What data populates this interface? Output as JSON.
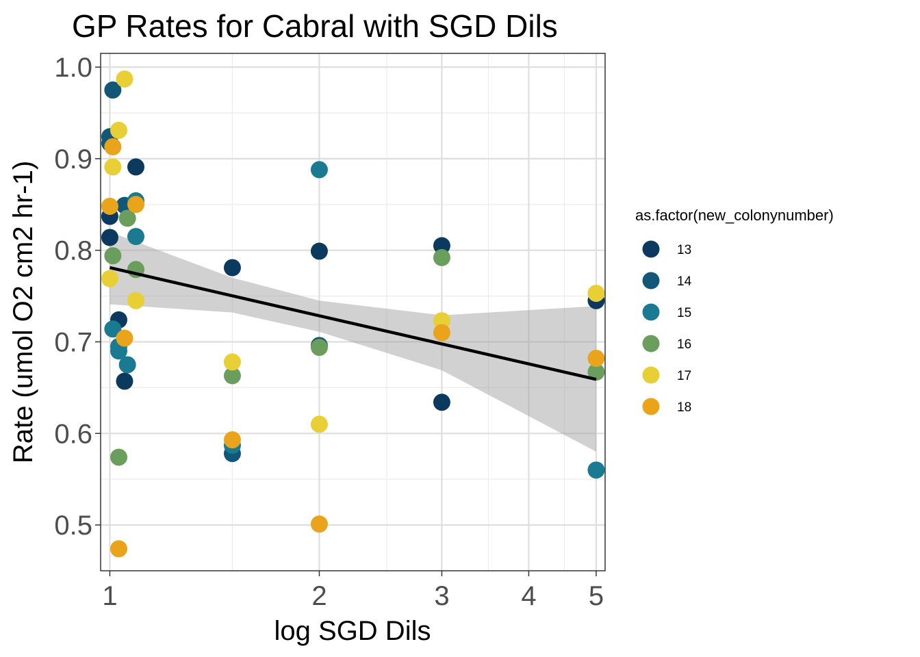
{
  "chart_data": {
    "type": "scatter",
    "title": "GP Rates for Cabral with SGD Dils",
    "xlabel": "log SGD Dils",
    "ylabel": "Rate (umol O2 cm2 hr-1)",
    "x_scale": "log",
    "xlim": [
      0.97,
      5.15
    ],
    "ylim": [
      0.45,
      1.015
    ],
    "x_ticks": [
      1,
      2,
      3,
      4,
      5
    ],
    "x_tick_labels": [
      "1",
      "2",
      "3",
      "4",
      "5"
    ],
    "y_ticks": [
      0.5,
      0.6,
      0.7,
      0.8,
      0.9,
      1.0
    ],
    "y_tick_labels": [
      "0.5",
      "0.6",
      "0.7",
      "0.8",
      "0.9",
      "1.0"
    ],
    "grid": true,
    "legend": {
      "title": "as.factor(new_colonynumber)",
      "position": "right"
    },
    "series": [
      {
        "name": "13",
        "color": "#0c3a5e",
        "points": [
          [
            1.0,
            0.837
          ],
          [
            1.0,
            0.814
          ],
          [
            1.03,
            0.724
          ],
          [
            1.09,
            0.891
          ],
          [
            1.05,
            0.657
          ],
          [
            1.5,
            0.781
          ],
          [
            2.0,
            0.799
          ],
          [
            3.0,
            0.805
          ],
          [
            3.0,
            0.634
          ],
          [
            5.0,
            0.745
          ]
        ]
      },
      {
        "name": "14",
        "color": "#125777",
        "points": [
          [
            1.01,
            0.975
          ],
          [
            1.0,
            0.924
          ],
          [
            1.0,
            0.917
          ],
          [
            1.05,
            0.849
          ],
          [
            1.5,
            0.578
          ],
          [
            2.0,
            0.696
          ]
        ]
      },
      {
        "name": "15",
        "color": "#197a92",
        "points": [
          [
            1.01,
            0.714
          ],
          [
            1.03,
            0.69
          ],
          [
            1.03,
            0.695
          ],
          [
            1.06,
            0.675
          ],
          [
            1.09,
            0.854
          ],
          [
            1.09,
            0.815
          ],
          [
            1.5,
            0.587
          ],
          [
            2.0,
            0.888
          ],
          [
            5.0,
            0.56
          ]
        ]
      },
      {
        "name": "16",
        "color": "#6a9e5c",
        "points": [
          [
            1.01,
            0.794
          ],
          [
            1.06,
            0.835
          ],
          [
            1.09,
            0.779
          ],
          [
            1.03,
            0.574
          ],
          [
            1.5,
            0.663
          ],
          [
            2.0,
            0.694
          ],
          [
            3.0,
            0.792
          ],
          [
            5.0,
            0.667
          ]
        ]
      },
      {
        "name": "17",
        "color": "#e8cf35",
        "points": [
          [
            1.05,
            0.987
          ],
          [
            1.03,
            0.931
          ],
          [
            1.01,
            0.891
          ],
          [
            1.0,
            0.769
          ],
          [
            1.09,
            0.745
          ],
          [
            1.5,
            0.678
          ],
          [
            2.0,
            0.61
          ],
          [
            3.0,
            0.723
          ],
          [
            5.0,
            0.753
          ]
        ]
      },
      {
        "name": "18",
        "color": "#e9a41c",
        "points": [
          [
            1.01,
            0.913
          ],
          [
            1.0,
            0.848
          ],
          [
            1.09,
            0.85
          ],
          [
            1.05,
            0.704
          ],
          [
            1.03,
            0.474
          ],
          [
            1.5,
            0.593
          ],
          [
            2.0,
            0.501
          ],
          [
            3.0,
            0.71
          ],
          [
            5.0,
            0.682
          ]
        ]
      }
    ],
    "fit_line": {
      "x": [
        1.0,
        5.0
      ],
      "y": [
        0.781,
        0.659
      ],
      "color": "#000000"
    },
    "confidence_band": {
      "x": [
        1.0,
        1.5,
        2.0,
        3.0,
        5.0
      ],
      "upper": [
        0.82,
        0.77,
        0.745,
        0.729,
        0.739
      ],
      "lower": [
        0.741,
        0.732,
        0.711,
        0.669,
        0.58
      ],
      "color": "#999999"
    }
  }
}
